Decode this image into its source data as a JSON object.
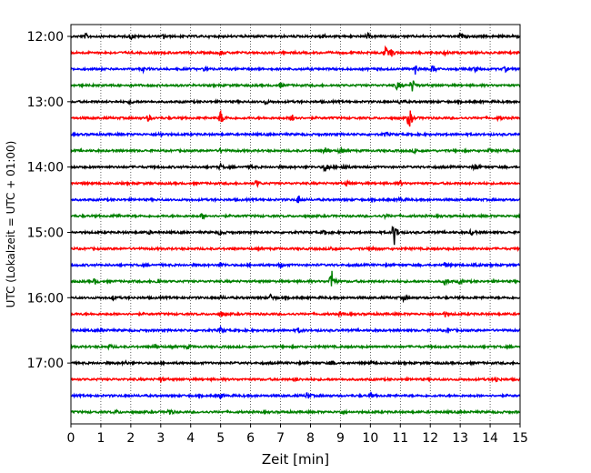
{
  "chart_data": {
    "type": "line",
    "title": "",
    "xlabel": "Zeit  [min]",
    "ylabel": "UTC (Lokalzeit = UTC + 01:00)",
    "xlim": [
      0,
      15
    ],
    "x_ticks": [
      "0",
      "1",
      "2",
      "3",
      "4",
      "5",
      "6",
      "7",
      "8",
      "9",
      "10",
      "11",
      "12",
      "13",
      "14",
      "15"
    ],
    "y_tick_labels": [
      "12:00",
      "13:00",
      "14:00",
      "15:00",
      "16:00",
      "17:00"
    ],
    "traces_per_hour": 4,
    "minutes_per_trace": 15,
    "grid": "vertical dotted at each minute",
    "color_cycle": [
      "#000000",
      "#ff0000",
      "#0000ff",
      "#008000"
    ],
    "series": [
      {
        "start": "12:00",
        "events": [
          [
            0.5,
            2.5
          ],
          [
            2.0,
            3.0
          ],
          [
            3.1,
            2.5
          ],
          [
            8.4,
            3.0
          ],
          [
            9.9,
            2.5
          ],
          [
            13.0,
            4.0
          ],
          [
            14.8,
            2.5
          ]
        ]
      },
      {
        "start": "12:15",
        "events": [
          [
            5.0,
            2.5
          ],
          [
            10.5,
            6.0
          ],
          [
            10.7,
            4.0
          ],
          [
            12.5,
            2.0
          ]
        ]
      },
      {
        "start": "12:30",
        "events": [
          [
            2.4,
            2.5
          ],
          [
            4.5,
            2.5
          ],
          [
            11.5,
            5.0
          ],
          [
            12.1,
            4.0
          ],
          [
            13.5,
            2.5
          ],
          [
            14.5,
            2.5
          ]
        ]
      },
      {
        "start": "12:45",
        "events": [
          [
            7.0,
            2.5
          ],
          [
            10.9,
            5.0
          ],
          [
            11.4,
            7.0
          ]
        ]
      },
      {
        "start": "13:00",
        "events": [
          [
            2.0,
            2.0
          ],
          [
            6.5,
            2.5
          ],
          [
            11.0,
            2.5
          ]
        ]
      },
      {
        "start": "13:15",
        "events": [
          [
            2.6,
            3.5
          ],
          [
            5.0,
            8.0
          ],
          [
            7.4,
            5.0
          ],
          [
            11.3,
            12.0
          ],
          [
            14.3,
            2.5
          ]
        ]
      },
      {
        "start": "13:30",
        "events": [
          [
            3.0,
            2.0
          ],
          [
            10.5,
            2.0
          ]
        ]
      },
      {
        "start": "13:45",
        "events": [
          [
            5.0,
            2.0
          ],
          [
            8.5,
            4.0
          ],
          [
            9.0,
            3.0
          ],
          [
            11.5,
            2.5
          ],
          [
            14.0,
            2.5
          ]
        ]
      },
      {
        "start": "14:00",
        "events": [
          [
            5.0,
            2.5
          ],
          [
            6.0,
            2.0
          ],
          [
            8.5,
            6.0
          ],
          [
            9.1,
            3.0
          ],
          [
            13.5,
            3.5
          ]
        ]
      },
      {
        "start": "14:15",
        "events": [
          [
            6.2,
            3.5
          ],
          [
            9.2,
            2.5
          ],
          [
            11.0,
            2.0
          ]
        ]
      },
      {
        "start": "14:30",
        "events": [
          [
            7.6,
            5.0
          ],
          [
            11.0,
            2.0
          ]
        ]
      },
      {
        "start": "14:45",
        "events": [
          [
            1.5,
            2.0
          ],
          [
            4.4,
            3.0
          ],
          [
            10.5,
            2.0
          ]
        ]
      },
      {
        "start": "15:00",
        "events": [
          [
            5.0,
            3.0
          ],
          [
            8.5,
            2.5
          ],
          [
            10.8,
            13.0
          ],
          [
            13.4,
            3.0
          ],
          [
            2.6,
            2.0
          ]
        ]
      },
      {
        "start": "15:15",
        "events": [
          [
            8.7,
            2.5
          ],
          [
            10.1,
            2.0
          ]
        ]
      },
      {
        "start": "15:30",
        "events": [
          [
            5.0,
            3.0
          ],
          [
            7.0,
            2.5
          ],
          [
            12.5,
            2.5
          ],
          [
            13.5,
            2.5
          ]
        ]
      },
      {
        "start": "15:45",
        "events": [
          [
            0.8,
            3.0
          ],
          [
            2.9,
            3.5
          ],
          [
            8.7,
            14.0
          ],
          [
            12.5,
            4.0
          ],
          [
            13.0,
            2.5
          ]
        ]
      },
      {
        "start": "16:00",
        "events": [
          [
            1.4,
            2.5
          ],
          [
            6.7,
            4.5
          ],
          [
            5.0,
            2.0
          ],
          [
            11.1,
            2.5
          ]
        ]
      },
      {
        "start": "16:15",
        "events": [
          [
            5.0,
            3.0
          ],
          [
            9.0,
            2.0
          ],
          [
            12.5,
            2.5
          ]
        ]
      },
      {
        "start": "16:30",
        "events": [
          [
            1.0,
            2.0
          ],
          [
            5.0,
            2.5
          ],
          [
            7.6,
            2.5
          ],
          [
            12.6,
            2.5
          ]
        ]
      },
      {
        "start": "16:45",
        "events": [
          [
            1.3,
            2.0
          ],
          [
            2.8,
            2.5
          ],
          [
            3.9,
            2.0
          ]
        ]
      },
      {
        "start": "17:00",
        "events": [
          [
            1.8,
            2.0
          ],
          [
            8.7,
            2.5
          ],
          [
            10.0,
            2.0
          ]
        ]
      },
      {
        "start": "17:15",
        "events": [
          [
            3.0,
            2.5
          ],
          [
            7.5,
            2.0
          ],
          [
            14.2,
            3.0
          ]
        ]
      },
      {
        "start": "17:30",
        "events": [
          [
            5.0,
            3.0
          ],
          [
            7.9,
            4.0
          ],
          [
            10.0,
            2.5
          ]
        ]
      },
      {
        "start": "17:45",
        "events": [
          [
            3.3,
            3.5
          ],
          [
            1.5,
            2.0
          ],
          [
            9.0,
            2.0
          ]
        ]
      }
    ]
  }
}
